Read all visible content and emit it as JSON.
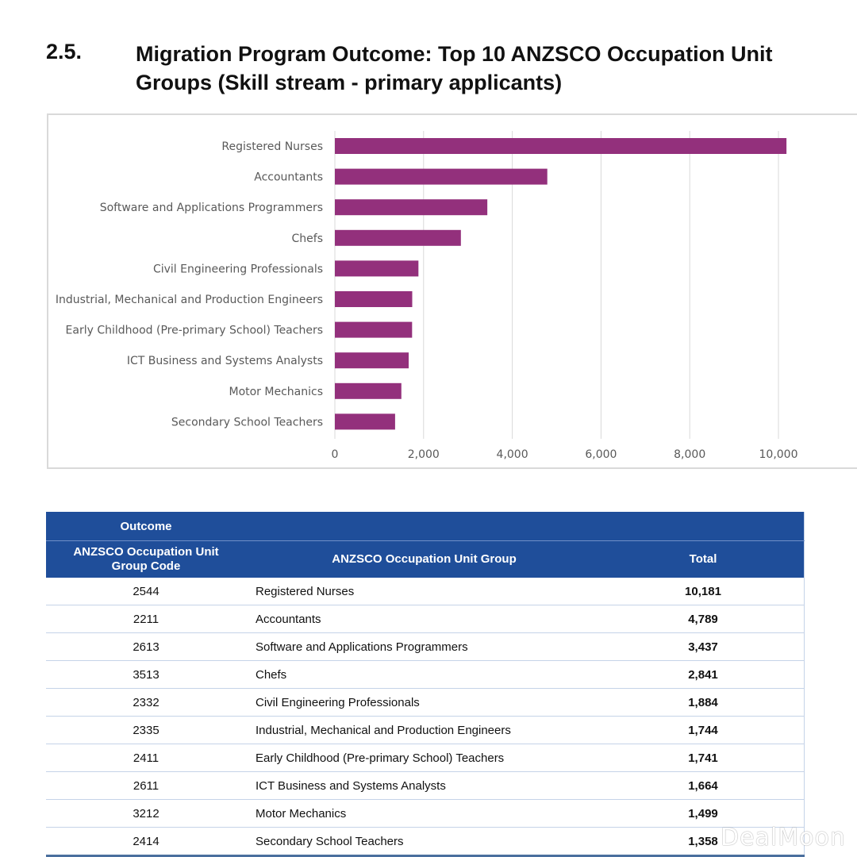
{
  "section": {
    "number": "2.5.",
    "title": "Migration Program Outcome: Top 10 ANZSCO Occupation Unit Groups (Skill stream - primary applicants)"
  },
  "chart_data": {
    "type": "bar",
    "orientation": "horizontal",
    "categories": [
      "Registered Nurses",
      "Accountants",
      "Software and Applications Programmers",
      "Chefs",
      "Civil Engineering Professionals",
      "Industrial, Mechanical and Production Engineers",
      "Early Childhood (Pre-primary School) Teachers",
      "ICT Business and Systems Analysts",
      "Motor Mechanics",
      "Secondary School Teachers"
    ],
    "values": [
      10181,
      4789,
      3437,
      2841,
      1884,
      1744,
      1741,
      1664,
      1499,
      1358
    ],
    "xlim": [
      0,
      11000
    ],
    "xticks": [
      0,
      2000,
      4000,
      6000,
      8000,
      10000
    ],
    "xtick_labels": [
      "0",
      "2,000",
      "4,000",
      "6,000",
      "8,000",
      "10,000"
    ],
    "grid": true,
    "bar_color": "#93307c"
  },
  "table": {
    "group_header": "Outcome",
    "headers": [
      "ANZSCO Occupation Unit Group Code",
      "ANZSCO Occupation Unit Group",
      "Total"
    ],
    "rows": [
      [
        "2544",
        "Registered Nurses",
        "10,181"
      ],
      [
        "2211",
        "Accountants",
        "4,789"
      ],
      [
        "2613",
        "Software and Applications Programmers",
        "3,437"
      ],
      [
        "3513",
        "Chefs",
        "2,841"
      ],
      [
        "2332",
        "Civil Engineering Professionals",
        "1,884"
      ],
      [
        "2335",
        "Industrial, Mechanical and Production Engineers",
        "1,744"
      ],
      [
        "2411",
        "Early Childhood (Pre-primary School) Teachers",
        "1,741"
      ],
      [
        "2611",
        "ICT Business and Systems Analysts",
        "1,664"
      ],
      [
        "3212",
        "Motor Mechanics",
        "1,499"
      ],
      [
        "2414",
        "Secondary School Teachers",
        "1,358"
      ]
    ]
  },
  "watermark": "DealMoon"
}
